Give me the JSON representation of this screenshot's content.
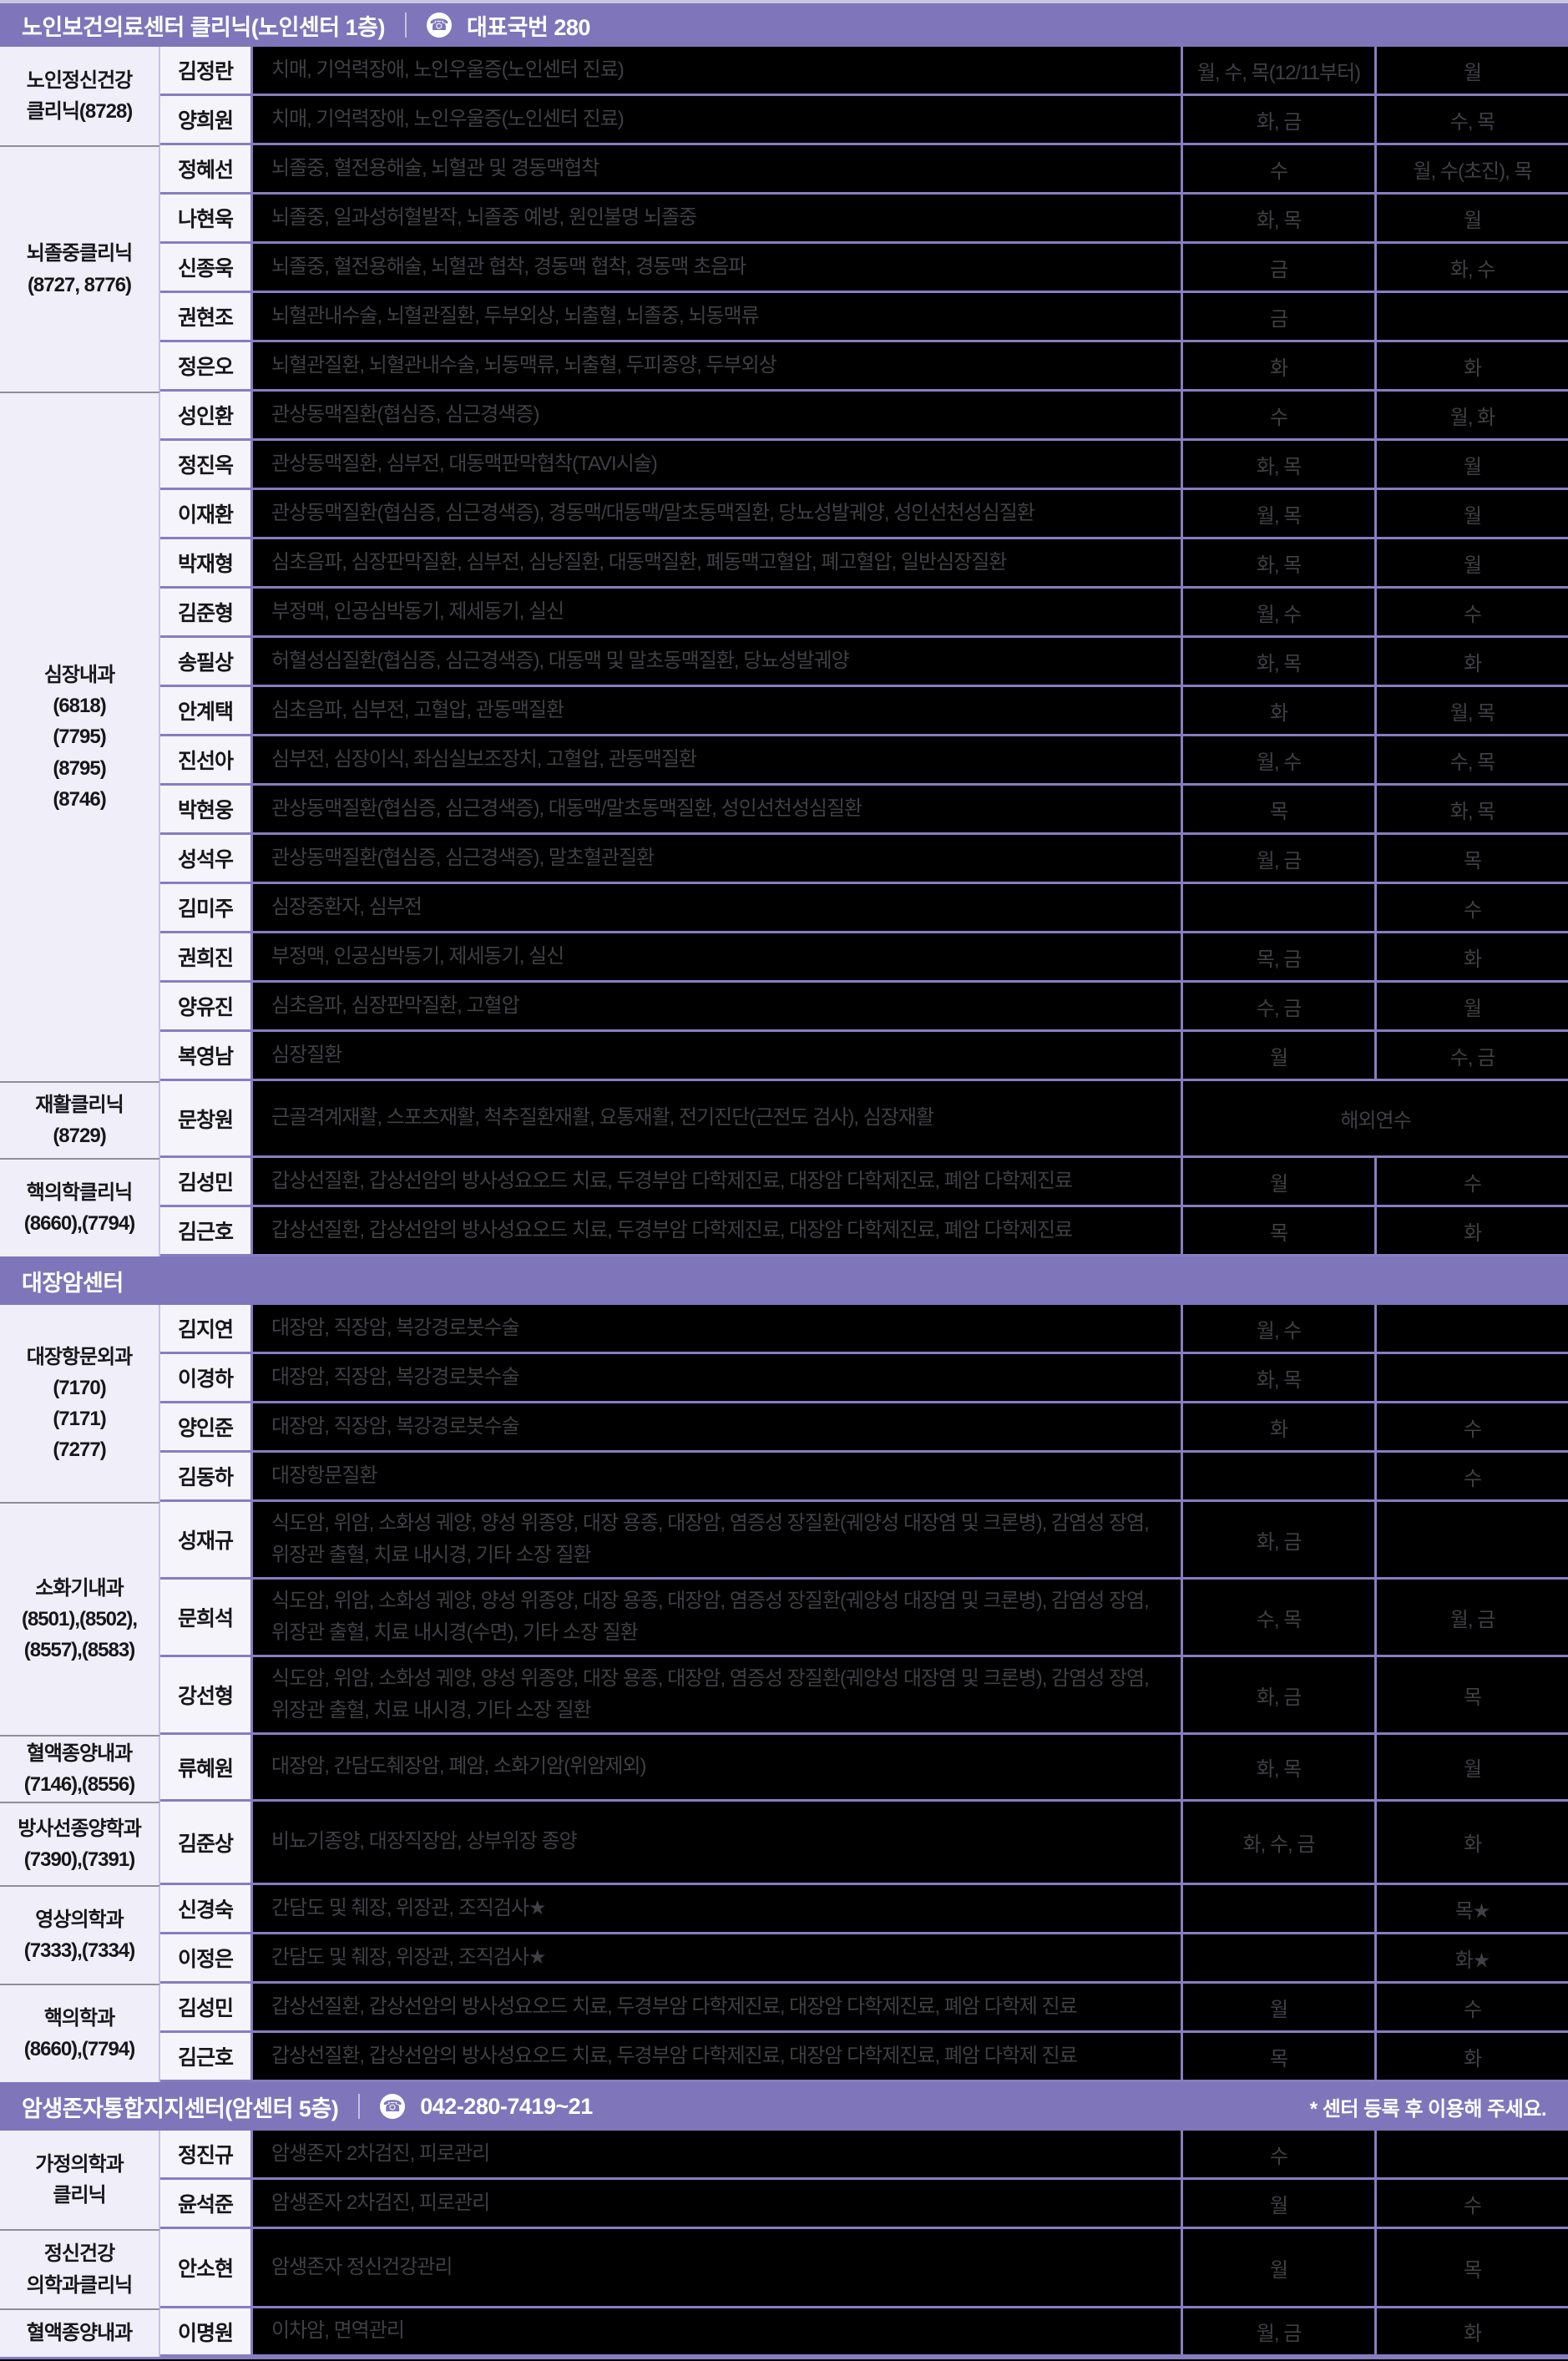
{
  "phone_icon_glyph": "☎",
  "colors": {
    "band_purple": "#7e75bb",
    "grid_purple": "#877dc2",
    "light_purple_border": "#c7c1e4",
    "dept_bg": "#f0eef8",
    "doctor_bg": "#f6f4fb",
    "cell_bg": "#000000",
    "cell_text": "#3f3f45",
    "top_strip": "#c9c4e2"
  },
  "sections": [
    {
      "header": {
        "title": "노인보건의료센터 클리닉(노인센터 1층)",
        "phone": "대표국번 280"
      },
      "groups": [
        {
          "dept_lines": [
            "노인정신건강",
            "클리닉(8728)"
          ],
          "rows": [
            {
              "name": "김정란",
              "spec": "치매, 기억력장애, 노인우울증(노인센터 진료)",
              "s1": "월, 수, 목(12/11부터)",
              "s2": "월"
            },
            {
              "name": "양희원",
              "spec": "치매, 기억력장애, 노인우울증(노인센터 진료)",
              "s1": "화, 금",
              "s2": "수, 목"
            }
          ]
        },
        {
          "dept_lines": [
            "뇌졸중클리닉",
            "(8727, 8776)"
          ],
          "rows": [
            {
              "name": "정혜선",
              "spec": "뇌졸중, 혈전용해술, 뇌혈관 및 경동맥협착",
              "s1": "수",
              "s2": "월, 수(초진), 목"
            },
            {
              "name": "나현욱",
              "spec": "뇌졸중, 일과성허혈발작, 뇌졸중 예방, 원인불명 뇌졸중",
              "s1": "화, 목",
              "s2": "월"
            },
            {
              "name": "신종욱",
              "spec": "뇌졸중, 혈전용해술, 뇌혈관 협착, 경동맥 협착, 경동맥 초음파",
              "s1": "금",
              "s2": "화, 수"
            },
            {
              "name": "권현조",
              "spec": "뇌혈관내수술, 뇌혈관질환, 두부외상, 뇌출혈, 뇌졸중, 뇌동맥류",
              "s1": "금",
              "s2": ""
            },
            {
              "name": "정은오",
              "spec": "뇌혈관질환, 뇌혈관내수술, 뇌동맥류, 뇌출혈, 두피종양, 두부외상",
              "s1": "화",
              "s2": "화"
            }
          ]
        },
        {
          "dept_lines": [
            "심장내과",
            "(6818)",
            "(7795)",
            "(8795)",
            "(8746)"
          ],
          "rows": [
            {
              "name": "성인환",
              "spec": "관상동맥질환(협심증, 심근경색증)",
              "s1": "수",
              "s2": "월, 화"
            },
            {
              "name": "정진옥",
              "spec": "관상동맥질환, 심부전, 대동맥판막협착(TAVI시술)",
              "s1": "화, 목",
              "s2": "월"
            },
            {
              "name": "이재환",
              "spec": "관상동맥질환(협심증, 심근경색증), 경동맥/대동맥/말초동맥질환, 당뇨성발궤양, 성인선천성심질환",
              "s1": "월, 목",
              "s2": "월"
            },
            {
              "name": "박재형",
              "spec": "심초음파, 심장판막질환, 심부전, 심낭질환, 대동맥질환, 폐동맥고혈압, 폐고혈압, 일반심장질환",
              "s1": "화, 목",
              "s2": "월"
            },
            {
              "name": "김준형",
              "spec": "부정맥, 인공심박동기, 제세동기, 실신",
              "s1": "월, 수",
              "s2": "수"
            },
            {
              "name": "송필상",
              "spec": "허혈성심질환(협심증, 심근경색증), 대동맥 및 말초동맥질환, 당뇨성발궤양",
              "s1": "화, 목",
              "s2": "화"
            },
            {
              "name": "안계택",
              "spec": "심초음파, 심부전, 고혈압, 관동맥질환",
              "s1": "화",
              "s2": "월, 목"
            },
            {
              "name": "진선아",
              "spec": "심부전, 심장이식, 좌심실보조장치, 고혈압, 관동맥질환",
              "s1": "월, 수",
              "s2": "수, 목"
            },
            {
              "name": "박현웅",
              "spec": "관상동맥질환(협심증, 심근경색증), 대동맥/말초동맥질환, 성인선천성심질환",
              "s1": "목",
              "s2": "화, 목"
            },
            {
              "name": "성석우",
              "spec": "관상동맥질환(협심증, 심근경색증), 말초혈관질환",
              "s1": "월, 금",
              "s2": "목"
            },
            {
              "name": "김미주",
              "spec": "심장중환자, 심부전",
              "s1": "",
              "s2": "수"
            },
            {
              "name": "권희진",
              "spec": "부정맥, 인공심박동기, 제세동기, 실신",
              "s1": "목, 금",
              "s2": "화"
            },
            {
              "name": "양유진",
              "spec": "심초음파, 심장판막질환, 고혈압",
              "s1": "수, 금",
              "s2": "월"
            },
            {
              "name": "복영남",
              "spec": "심장질환",
              "s1": "월",
              "s2": "수, 금"
            }
          ]
        },
        {
          "dept_lines": [
            "재활클리닉",
            "(8729)"
          ],
          "rows": [
            {
              "name": "문창원",
              "spec": "근골격계재활, 스포츠재활, 척추질환재활, 요통재활, 전기진단(근전도 검사), 심장재활",
              "merged": "해외연수",
              "h": 92
            }
          ]
        },
        {
          "dept_lines": [
            "핵의학클리닉",
            "(8660),(7794)"
          ],
          "rows": [
            {
              "name": "김성민",
              "spec": "갑상선질환, 갑상선암의 방사성요오드 치료, 두경부암 다학제진료, 대장암 다학제진료, 폐암 다학제진료",
              "s1": "월",
              "s2": "수"
            },
            {
              "name": "김근호",
              "spec": "갑상선질환, 갑상선암의 방사성요오드 치료, 두경부암 다학제진료, 대장암 다학제진료, 폐암 다학제진료",
              "s1": "목",
              "s2": "화"
            }
          ]
        }
      ]
    },
    {
      "header": {
        "title": "대장암센터"
      },
      "groups": [
        {
          "dept_lines": [
            "대장항문외과",
            "(7170)",
            "(7171)",
            "(7277)"
          ],
          "rows": [
            {
              "name": "김지연",
              "spec": "대장암, 직장암, 복강경로봇수술",
              "s1": "월, 수",
              "s2": ""
            },
            {
              "name": "이경하",
              "spec": "대장암, 직장암, 복강경로봇수술",
              "s1": "화, 목",
              "s2": ""
            },
            {
              "name": "양인준",
              "spec": "대장암, 직장암, 복강경로봇수술",
              "s1": "화",
              "s2": "수"
            },
            {
              "name": "김동하",
              "spec": "대장항문질환",
              "s1": "",
              "s2": "수"
            }
          ]
        },
        {
          "dept_lines": [
            "소화기내과",
            "(8501),(8502),",
            "(8557),(8583)"
          ],
          "rows": [
            {
              "name": "성재규",
              "spec": "식도암, 위암, 소화성 궤양, 양성 위종양, 대장 용종, 대장암, 염증성 장질환(궤양성 대장염 및 크론병), 감염성 장염, 위장관 출혈, 치료 내시경, 기타 소장 질환",
              "s1": "화, 금",
              "s2": "",
              "h": 93
            },
            {
              "name": "문희석",
              "spec": "식도암, 위암, 소화성 궤양, 양성 위종양, 대장 용종, 대장암, 염증성 장질환(궤양성 대장염 및 크론병), 감염성 장염, 위장관 출혈, 치료 내시경(수면), 기타 소장 질환",
              "s1": "수, 목",
              "s2": "월, 금",
              "h": 93
            },
            {
              "name": "강선형",
              "spec": "식도암, 위암, 소화성 궤양, 양성 위종양, 대장 용종, 대장암, 염증성 장질환(궤양성 대장염 및 크론병), 감염성 장염, 위장관 출혈, 치료 내시경, 기타 소장 질환",
              "s1": "화, 금",
              "s2": "목",
              "h": 93
            }
          ]
        },
        {
          "dept_lines": [
            "혈액종양내과",
            "(7146),(8556)"
          ],
          "rows": [
            {
              "name": "류혜원",
              "spec": "대장암, 간담도췌장암, 폐암, 소화기암(위암제외)",
              "s1": "화, 목",
              "s2": "월",
              "h": 80
            }
          ]
        },
        {
          "dept_lines": [
            "방사선종양학과",
            "(7390),(7391)"
          ],
          "rows": [
            {
              "name": "김준상",
              "spec": "비뇨기종양, 대장직장암, 상부위장 종양",
              "s1": "화, 수, 금",
              "s2": "화",
              "h": 100
            }
          ]
        },
        {
          "dept_lines": [
            "영상의학과",
            "(7333),(7334)"
          ],
          "rows": [
            {
              "name": "신경숙",
              "spec": "간담도 및 췌장, 위장관, 조직검사★",
              "s1": "",
              "s2": "목★"
            },
            {
              "name": "이정은",
              "spec": "간담도 및 췌장, 위장관, 조직검사★",
              "s1": "",
              "s2": "화★"
            }
          ]
        },
        {
          "dept_lines": [
            "핵의학과",
            "(8660),(7794)"
          ],
          "rows": [
            {
              "name": "김성민",
              "spec": "갑상선질환, 갑상선암의 방사성요오드 치료, 두경부암 다학제진료, 대장암 다학제진료, 폐암 다학제 진료",
              "s1": "월",
              "s2": "수"
            },
            {
              "name": "김근호",
              "spec": "갑상선질환, 갑상선암의 방사성요오드 치료, 두경부암 다학제진료, 대장암 다학제진료, 폐암 다학제 진료",
              "s1": "목",
              "s2": "화"
            }
          ]
        }
      ]
    },
    {
      "header": {
        "title": "암생존자통합지지센터(암센터 5층)",
        "phone": "042-280-7419~21",
        "note": "* 센터 등록 후 이용해 주세요."
      },
      "groups": [
        {
          "dept_lines": [
            "가정의학과",
            "클리닉"
          ],
          "rows": [
            {
              "name": "정진규",
              "spec": "암생존자 2차검진, 피로관리",
              "s1": "수",
              "s2": ""
            },
            {
              "name": "윤석준",
              "spec": "암생존자 2차검진, 피로관리",
              "s1": "월",
              "s2": "수"
            }
          ]
        },
        {
          "dept_lines": [
            "정신건강",
            "의학과클리닉"
          ],
          "rows": [
            {
              "name": "안소현",
              "spec": "암생존자 정신건강관리",
              "s1": "월",
              "s2": "목",
              "h": 95
            }
          ]
        },
        {
          "dept_lines": [
            "혈액종양내과"
          ],
          "rows": [
            {
              "name": "이명원",
              "spec": "이차암, 면역관리",
              "s1": "월, 금",
              "s2": "화",
              "h": 58
            }
          ]
        }
      ]
    }
  ]
}
